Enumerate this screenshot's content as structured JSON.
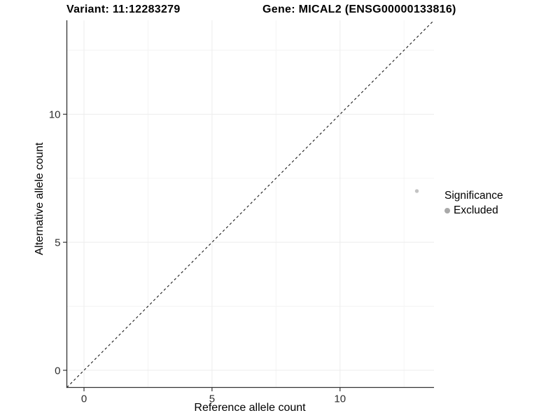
{
  "chart_data": {
    "type": "scatter",
    "title_left": "Variant: 11:12283279",
    "title_right": "Gene: MICAL2 (ENSG00000133816)",
    "xlabel": "Reference allele count",
    "ylabel": "Alternative allele count",
    "xlim": [
      -0.67,
      13.67
    ],
    "ylim": [
      -0.67,
      13.67
    ],
    "x_ticks": [
      0,
      5,
      10
    ],
    "y_ticks": [
      0,
      5,
      10
    ],
    "x_minor_ticks": [
      2.5,
      7.5,
      12.5
    ],
    "y_minor_ticks": [
      2.5,
      7.5,
      12.5
    ],
    "grid": true,
    "series": [
      {
        "name": "Excluded",
        "color": "#c3c3c3",
        "marker": "circle",
        "points": [
          {
            "x": 13,
            "y": 7
          }
        ]
      }
    ],
    "reference_line": {
      "type": "identity",
      "equation": "y = x",
      "style": "dashed",
      "color": "#1a1a1a"
    },
    "legend": {
      "title": "Significance",
      "position": "right",
      "items": [
        {
          "label": "Excluded",
          "color": "#a9a9a9",
          "marker": "circle"
        }
      ]
    }
  },
  "colors": {
    "background": "#ffffff",
    "grid_major": "#ececec",
    "grid_minor": "#f4f4f4",
    "axis_line": "#333333",
    "tick_mark": "#333333",
    "tick_label": "#2b2b2b",
    "text": "#000000"
  }
}
